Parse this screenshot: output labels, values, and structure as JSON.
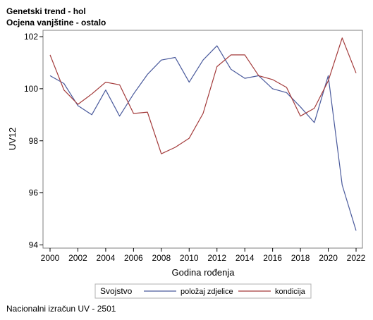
{
  "header": {
    "title": "Genetski trend - hol",
    "subtitle": "Ocjena vanjštine - ostalo"
  },
  "footer": {
    "text": "Nacionalni izračun UV - 2501"
  },
  "chart_data": {
    "type": "line",
    "xlabel": "Godina rođenja",
    "ylabel": "UV12",
    "xlim": [
      2000,
      2022
    ],
    "ylim": [
      94,
      102
    ],
    "xticks": [
      2000,
      2002,
      2004,
      2006,
      2008,
      2010,
      2012,
      2014,
      2016,
      2018,
      2020,
      2022
    ],
    "yticks": [
      94,
      96,
      98,
      100,
      102
    ],
    "grid": false,
    "legend": {
      "title": "Svojstvo",
      "placement": "bottom"
    },
    "x": [
      2000,
      2001,
      2002,
      2003,
      2004,
      2005,
      2006,
      2007,
      2008,
      2009,
      2010,
      2011,
      2012,
      2013,
      2014,
      2015,
      2016,
      2017,
      2018,
      2019,
      2020,
      2021,
      2022
    ],
    "series": [
      {
        "name": "položaj zdjelice",
        "color": "#4a5a9c",
        "values": [
          100.5,
          100.2,
          99.35,
          99.0,
          99.95,
          98.95,
          99.8,
          100.55,
          101.1,
          101.2,
          100.25,
          101.1,
          101.65,
          100.75,
          100.4,
          100.5,
          100.0,
          99.85,
          99.3,
          98.7,
          100.5,
          96.3,
          94.55
        ]
      },
      {
        "name": "kondicija",
        "color": "#a33a3a",
        "values": [
          101.3,
          99.95,
          99.4,
          99.8,
          100.25,
          100.15,
          99.05,
          99.1,
          97.5,
          97.75,
          98.1,
          99.05,
          100.85,
          101.3,
          101.3,
          100.5,
          100.35,
          100.05,
          98.95,
          99.25,
          100.3,
          101.95,
          100.6
        ]
      }
    ]
  }
}
